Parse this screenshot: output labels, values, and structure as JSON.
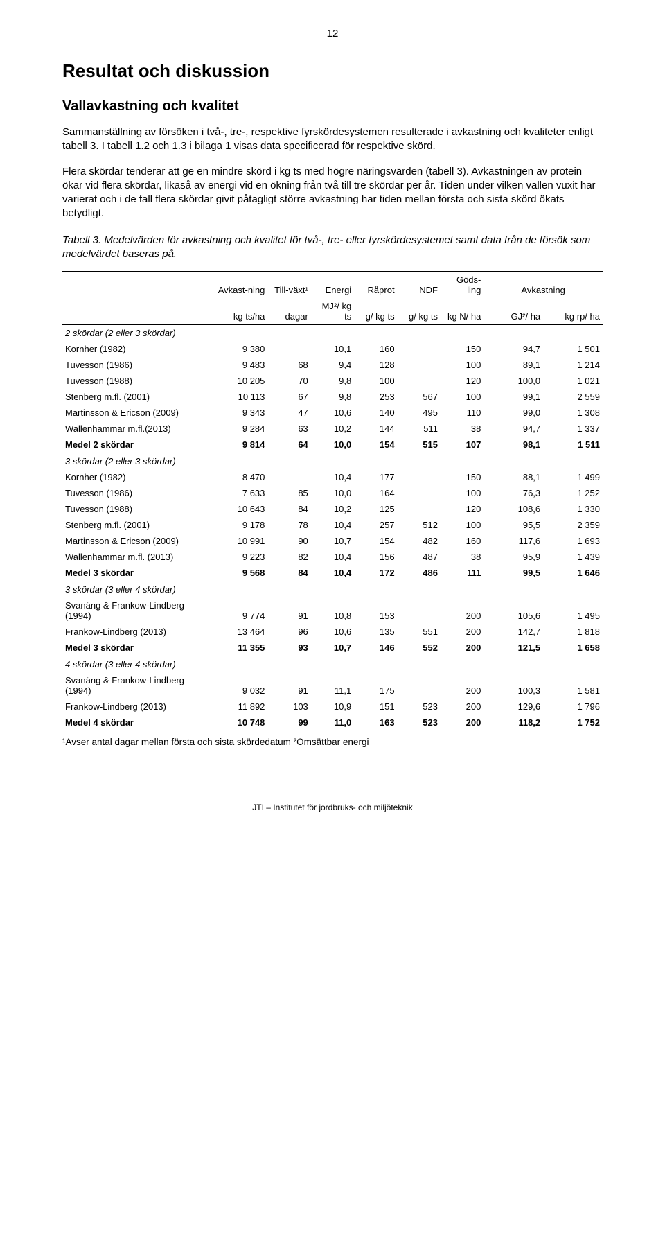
{
  "page_number": "12",
  "h1": "Resultat och diskussion",
  "h2": "Vallavkastning och kvalitet",
  "para1": "Sammanställning av försöken i två-, tre-, respektive fyrskördesystemen resulterade i avkastning och kvaliteter enligt tabell 3. I tabell 1.2 och 1.3 i bilaga 1 visas data specificerad för respektive skörd.",
  "para2": "Flera skördar tenderar att ge en mindre skörd i kg ts med högre näringsvärden (tabell 3). Avkastningen av protein ökar vid flera skördar, likaså av energi vid en ökning från två till tre skördar per år. Tiden under vilken vallen vuxit har varierat och i de fall flera skördar givit påtagligt större avkastning har tiden mellan första och sista skörd ökats betydligt.",
  "table_caption": "Tabell 3. Medelvärden för avkastning och kvalitet för två-, tre- eller fyrskördesystemet samt data från de försök som medelvärdet baseras på.",
  "header_row1": [
    "",
    "Avkast-ning",
    "Till-växt¹",
    "Energi",
    "Råprot",
    "NDF",
    "Göds-ling",
    "Avkastning",
    ""
  ],
  "header_row2": [
    "",
    "kg ts/ha",
    "dagar",
    "MJ²/ kg ts",
    "g/ kg ts",
    "g/ kg ts",
    "kg N/ ha",
    "GJ²/ ha",
    "kg rp/ ha"
  ],
  "sections": [
    {
      "title": "2 skördar (2 eller 3 skördar)",
      "rows": [
        [
          "Kornher (1982)",
          "9 380",
          "",
          "10,1",
          "160",
          "",
          "150",
          "94,7",
          "1 501"
        ],
        [
          "Tuvesson (1986)",
          "9 483",
          "68",
          "9,4",
          "128",
          "",
          "100",
          "89,1",
          "1 214"
        ],
        [
          "Tuvesson (1988)",
          "10 205",
          "70",
          "9,8",
          "100",
          "",
          "120",
          "100,0",
          "1 021"
        ],
        [
          "Stenberg m.fl. (2001)",
          "10 113",
          "67",
          "9,8",
          "253",
          "567",
          "100",
          "99,1",
          "2 559"
        ],
        [
          "Martinsson & Ericson (2009)",
          "9 343",
          "47",
          "10,6",
          "140",
          "495",
          "110",
          "99,0",
          "1 308"
        ],
        [
          "Wallenhammar m.fl.(2013)",
          "9 284",
          "63",
          "10,2",
          "144",
          "511",
          "38",
          "94,7",
          "1 337"
        ]
      ],
      "summary": [
        "Medel 2 skördar",
        "9 814",
        "64",
        "10,0",
        "154",
        "515",
        "107",
        "98,1",
        "1 511"
      ]
    },
    {
      "title": "3 skördar (2 eller 3 skördar)",
      "rows": [
        [
          "Kornher (1982)",
          "8 470",
          "",
          "10,4",
          "177",
          "",
          "150",
          "88,1",
          "1 499"
        ],
        [
          "Tuvesson (1986)",
          "7 633",
          "85",
          "10,0",
          "164",
          "",
          "100",
          "76,3",
          "1 252"
        ],
        [
          "Tuvesson (1988)",
          "10 643",
          "84",
          "10,2",
          "125",
          "",
          "120",
          "108,6",
          "1 330"
        ],
        [
          "Stenberg m.fl. (2001)",
          "9 178",
          "78",
          "10,4",
          "257",
          "512",
          "100",
          "95,5",
          "2 359"
        ],
        [
          "Martinsson & Ericson (2009)",
          "10 991",
          "90",
          "10,7",
          "154",
          "482",
          "160",
          "117,6",
          "1 693"
        ],
        [
          "Wallenhammar m.fl. (2013)",
          "9 223",
          "82",
          "10,4",
          "156",
          "487",
          "38",
          "95,9",
          "1 439"
        ]
      ],
      "summary": [
        "Medel 3 skördar",
        "9 568",
        "84",
        "10,4",
        "172",
        "486",
        "111",
        "99,5",
        "1 646"
      ]
    },
    {
      "title": "3 skördar (3 eller 4 skördar)",
      "rows": [
        [
          "Svanäng & Frankow-Lindberg (1994)",
          "9 774",
          "91",
          "10,8",
          "153",
          "",
          "200",
          "105,6",
          "1 495"
        ],
        [
          "Frankow-Lindberg (2013)",
          "13 464",
          "96",
          "10,6",
          "135",
          "551",
          "200",
          "142,7",
          "1 818"
        ]
      ],
      "summary": [
        "Medel 3 skördar",
        "11 355",
        "93",
        "10,7",
        "146",
        "552",
        "200",
        "121,5",
        "1 658"
      ]
    },
    {
      "title": "4 skördar (3 eller 4 skördar)",
      "rows": [
        [
          "Svanäng & Frankow-Lindberg (1994)",
          "9 032",
          "91",
          "11,1",
          "175",
          "",
          "200",
          "100,3",
          "1 581"
        ],
        [
          "Frankow-Lindberg (2013)",
          "11 892",
          "103",
          "10,9",
          "151",
          "523",
          "200",
          "129,6",
          "1 796"
        ]
      ],
      "summary": [
        "Medel 4 skördar",
        "10 748",
        "99",
        "11,0",
        "163",
        "523",
        "200",
        "118,2",
        "1 752"
      ]
    }
  ],
  "footnote": "¹Avser antal dagar mellan första och sista skördedatum ²Omsättbar energi",
  "footer": "JTI – Institutet för jordbruks- och miljöteknik"
}
